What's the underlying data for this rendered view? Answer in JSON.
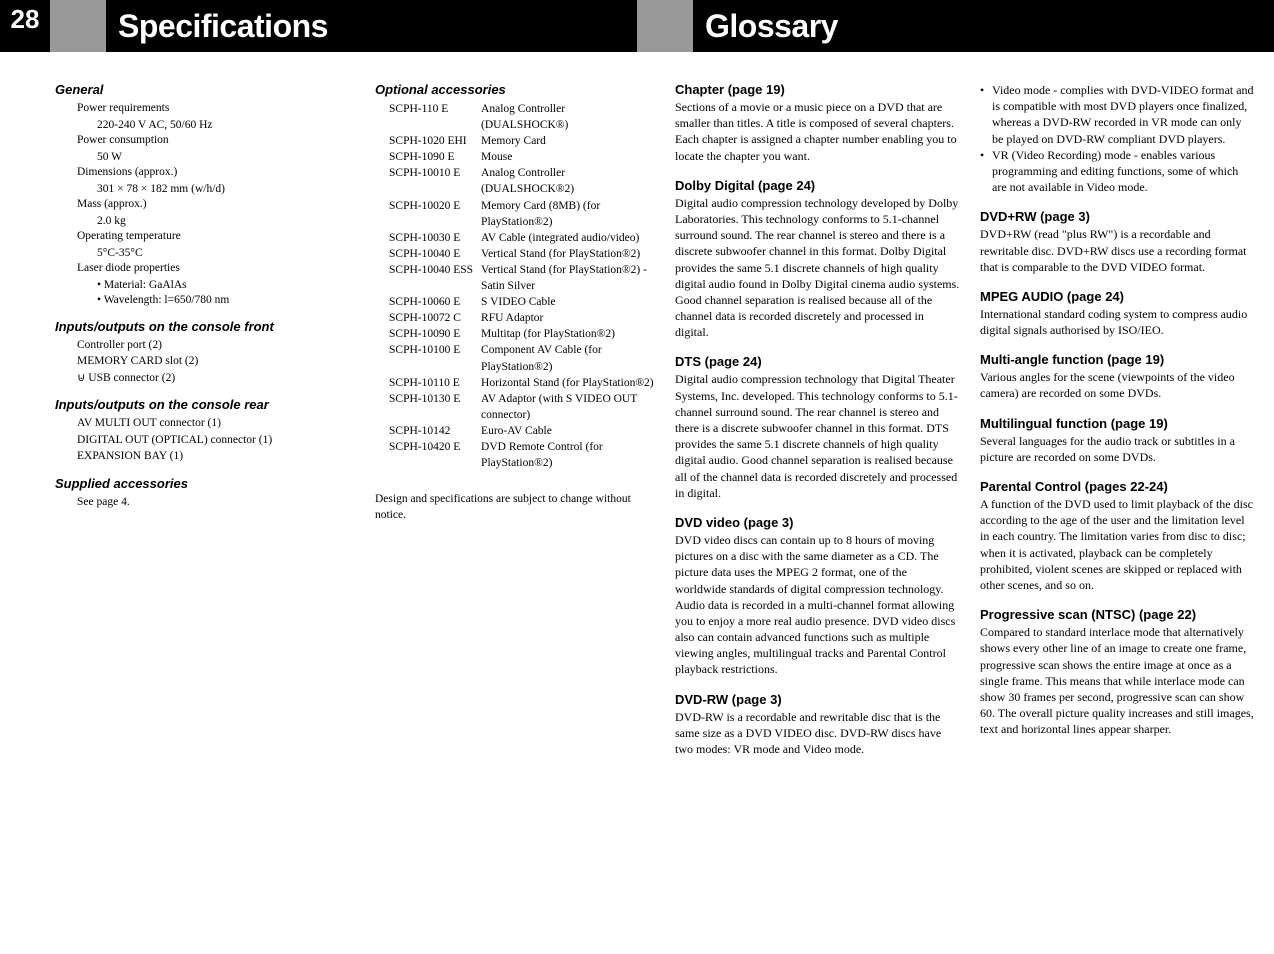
{
  "page_number": "28",
  "left_title": "Specifications",
  "right_title": "Glossary",
  "specs": {
    "general_head": "General",
    "power_req": "Power requirements",
    "power_req_v": "220-240 V AC, 50/60 Hz",
    "power_con": "Power consumption",
    "power_con_v": "50 W",
    "dims": "Dimensions (approx.)",
    "dims_v": "301 × 78 × 182 mm (w/h/d)",
    "mass": "Mass (approx.)",
    "mass_v": "2.0 kg",
    "temp": "Operating temperature",
    "temp_v": "5°C-35°C",
    "laser": "Laser diode properties",
    "laser_b1": "• Material: GaAlAs",
    "laser_b2": "• Wavelength: l=650/780 nm",
    "io_front_head": "Inputs/outputs on the console front",
    "io_f1": "Controller port (2)",
    "io_f2": "MEMORY CARD slot (2)",
    "io_f3": "⊍ USB connector (2)",
    "io_rear_head": "Inputs/outputs on the console rear",
    "io_r1": "AV MULTI OUT connector (1)",
    "io_r2": "DIGITAL OUT (OPTICAL) connector (1)",
    "io_r3": "EXPANSION BAY (1)",
    "supplied_head": "Supplied accessories",
    "supplied_v": "See page 4."
  },
  "accessories": {
    "head": "Optional accessories",
    "note": "Design and specifications are subject to change without notice.",
    "rows": [
      {
        "c": "SCPH-110 E",
        "d": "Analog Controller (DUALSHOCK®)"
      },
      {
        "c": "SCPH-1020 EHI",
        "d": "Memory Card"
      },
      {
        "c": "SCPH-1090 E",
        "d": "Mouse"
      },
      {
        "c": "SCPH-10010 E",
        "d": "Analog Controller (DUALSHOCK®2)"
      },
      {
        "c": "SCPH-10020 E",
        "d": "Memory Card (8MB) (for PlayStation®2)"
      },
      {
        "c": "SCPH-10030 E",
        "d": "AV Cable (integrated audio/video)"
      },
      {
        "c": "SCPH-10040 E",
        "d": "Vertical Stand (for PlayStation®2)"
      },
      {
        "c": "SCPH-10040 ESS",
        "d": "Vertical Stand (for PlayStation®2) - Satin Silver"
      },
      {
        "c": "SCPH-10060 E",
        "d": "S VIDEO Cable"
      },
      {
        "c": "SCPH-10072 C",
        "d": "RFU Adaptor"
      },
      {
        "c": "SCPH-10090 E",
        "d": "Multitap (for PlayStation®2)"
      },
      {
        "c": "SCPH-10100 E",
        "d": "Component AV Cable (for PlayStation®2)"
      },
      {
        "c": "SCPH-10110 E",
        "d": "Horizontal Stand (for PlayStation®2)"
      },
      {
        "c": "SCPH-10130 E",
        "d": "AV Adaptor (with S VIDEO OUT connector)"
      },
      {
        "c": "SCPH-10142",
        "d": "Euro-AV Cable"
      },
      {
        "c": "SCPH-10420 E",
        "d": "DVD Remote Control (for PlayStation®2)"
      }
    ]
  },
  "glossary_left": [
    {
      "h": "Chapter (page 19)",
      "b": "Sections of a movie or a music piece on a DVD that are smaller than titles. A title is composed of several chapters. Each chapter is assigned a chapter number enabling you to locate the chapter you want."
    },
    {
      "h": "Dolby Digital (page 24)",
      "b": "Digital audio compression technology developed by Dolby Laboratories. This technology conforms to 5.1-channel surround sound. The rear channel is stereo and there is a discrete subwoofer channel in this format. Dolby Digital provides the same 5.1 discrete channels of high quality digital audio found in Dolby Digital cinema audio systems. Good channel separation is realised because all of the channel data is recorded discretely and processed in digital."
    },
    {
      "h": "DTS (page 24)",
      "b": "Digital audio compression technology that Digital Theater Systems, Inc. developed. This technology conforms to 5.1-channel surround sound. The rear channel is stereo and there is a discrete subwoofer channel in this format. DTS provides the same 5.1 discrete channels of high quality digital audio. Good channel separation is realised because all of the channel data is recorded discretely and processed in digital."
    },
    {
      "h": "DVD video (page 3)",
      "b": "DVD video discs can contain up to 8 hours of moving pictures on a disc with the same diameter as a CD. The picture data uses the MPEG 2 format, one of the worldwide standards of digital compression technology. Audio data is recorded in a multi-channel format allowing you to enjoy a more real audio presence. DVD video discs also can contain advanced functions such as multiple viewing angles, multilingual tracks and Parental Control playback restrictions."
    },
    {
      "h": "DVD-RW (page 3)",
      "b": "DVD-RW is a recordable and rewritable disc that is the same size as a DVD VIDEO disc. DVD-RW discs have two modes: VR mode and Video mode."
    }
  ],
  "glossary_right_bullets": [
    "Video mode - complies with DVD-VIDEO format and is compatible with most DVD players once finalized, whereas a DVD-RW recorded in VR mode can only be played on DVD-RW compliant DVD players.",
    "VR (Video Recording) mode - enables various programming and editing functions, some of which are not available in Video mode."
  ],
  "glossary_right": [
    {
      "h": "DVD+RW (page 3)",
      "b": "DVD+RW (read \"plus RW\") is a recordable and rewritable disc. DVD+RW discs use a recording format that is comparable to the DVD VIDEO format."
    },
    {
      "h": "MPEG AUDIO (page 24)",
      "b": "International standard coding system to compress audio digital signals authorised by ISO/IEO."
    },
    {
      "h": "Multi-angle function (page 19)",
      "b": "Various angles for the scene (viewpoints of the video camera) are recorded on some DVDs."
    },
    {
      "h": "Multilingual function (page 19)",
      "b": "Several languages for the audio track or subtitles in a picture are recorded on some DVDs."
    },
    {
      "h": "Parental Control (pages 22-24)",
      "b": "A function of the DVD used to limit playback of the disc according to the age of the user and the limitation level in each country. The limitation varies from disc to disc; when it is activated, playback can be completely prohibited, violent scenes are skipped or replaced with other scenes, and so on."
    },
    {
      "h": "Progressive scan (NTSC) (page 22)",
      "b": "Compared to standard interlace mode that alternatively shows every other line of an image to create one frame, progressive scan shows the entire image at once as a single frame. This means that while interlace mode can show 30 frames per second, progressive scan can show 60. The overall picture quality increases and still images, text and horizontal lines appear sharper."
    }
  ]
}
